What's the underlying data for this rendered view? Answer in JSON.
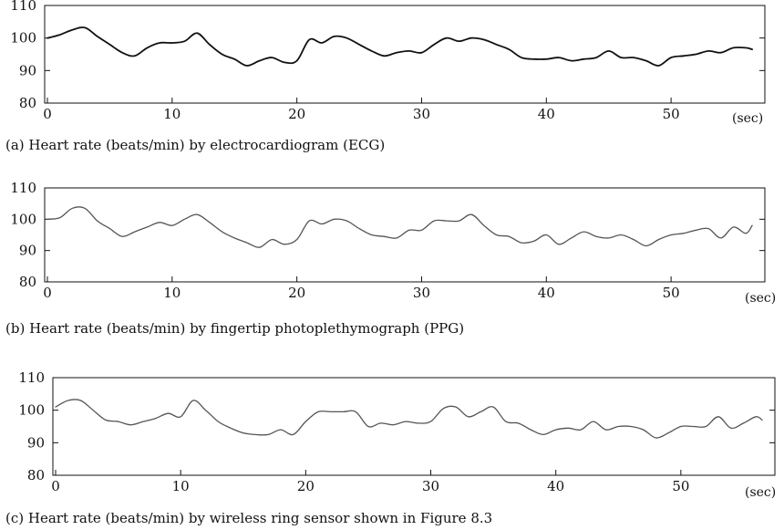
{
  "chart_data": [
    {
      "type": "line",
      "caption": "(a) Heart rate (beats/min) by electrocardiogram (ECG)",
      "x_unit_label": "(sec)",
      "xlim": [
        0,
        56.5
      ],
      "ylim": [
        80,
        110
      ],
      "xticks": [
        0,
        10,
        20,
        30,
        40,
        50
      ],
      "yticks": [
        80,
        90,
        100,
        110
      ],
      "grid": false,
      "line_color": "#111111",
      "series": [
        {
          "x": [
            0,
            1,
            2,
            3,
            4,
            5,
            6,
            7,
            8,
            9,
            10,
            11,
            12,
            13,
            14,
            15,
            16,
            17,
            18,
            19,
            20,
            21,
            22,
            23,
            24,
            25,
            26,
            27,
            28,
            29,
            30,
            31,
            32,
            33,
            34,
            35,
            36,
            37,
            38,
            39,
            40,
            41,
            42,
            43,
            44,
            45,
            46,
            47,
            48,
            49,
            50,
            51,
            52,
            53,
            54,
            55,
            56,
            56.5
          ],
          "values": [
            100,
            101,
            102.5,
            103.2,
            100.5,
            98,
            95.5,
            94.5,
            97,
            98.5,
            98.5,
            99,
            101.5,
            98,
            95,
            93.5,
            91.5,
            93,
            94,
            92.5,
            93,
            99.5,
            98.5,
            100.5,
            100,
            98,
            96,
            94.5,
            95.5,
            96,
            95.5,
            98,
            100,
            99,
            100,
            99.5,
            98,
            96.5,
            94,
            93.5,
            93.5,
            94,
            93,
            93.5,
            94,
            96,
            94,
            94,
            93,
            91.5,
            94,
            94.5,
            95,
            96,
            95.5,
            97,
            97,
            96.5
          ]
        }
      ]
    },
    {
      "type": "line",
      "caption": "(b) Heart rate (beats/min) by fingertip photoplethymograph (PPG)",
      "x_unit_label": "(sec)",
      "xlim": [
        0,
        56.5
      ],
      "ylim": [
        80,
        110
      ],
      "xticks": [
        0,
        10,
        20,
        30,
        40,
        50
      ],
      "yticks": [
        80,
        90,
        100,
        110
      ],
      "grid": false,
      "line_color": "#555555",
      "series": [
        {
          "x": [
            0,
            1,
            2,
            3,
            4,
            5,
            6,
            7,
            8,
            9,
            10,
            11,
            12,
            13,
            14,
            15,
            16,
            17,
            18,
            19,
            20,
            21,
            22,
            23,
            24,
            25,
            26,
            27,
            28,
            29,
            30,
            31,
            32,
            33,
            34,
            35,
            36,
            37,
            38,
            39,
            40,
            41,
            42,
            43,
            44,
            45,
            46,
            47,
            48,
            49,
            50,
            51,
            52,
            53,
            54,
            55,
            56,
            56.5
          ],
          "values": [
            100,
            100.5,
            103.5,
            103.5,
            99.5,
            97,
            94.5,
            96,
            97.5,
            99,
            98,
            100,
            101.5,
            99,
            96,
            94,
            92.5,
            91,
            93.5,
            92,
            93.5,
            99.5,
            98.5,
            100,
            99.5,
            97,
            95,
            94.5,
            94,
            96.5,
            96.5,
            99.5,
            99.5,
            99.5,
            101.5,
            98,
            95,
            94.5,
            92.5,
            93,
            95,
            92,
            94,
            96,
            94.5,
            94,
            95,
            93.5,
            91.5,
            93.5,
            95,
            95.5,
            96.5,
            97,
            94,
            97.5,
            95.5,
            98
          ]
        }
      ]
    },
    {
      "type": "line",
      "caption": "(c) Heart rate (beats/min) by wireless ring sensor shown in Figure 8.3",
      "x_unit_label": "(sec)",
      "xlim": [
        0,
        56.5
      ],
      "ylim": [
        80,
        110
      ],
      "xticks": [
        0,
        10,
        20,
        30,
        40,
        50
      ],
      "yticks": [
        80,
        90,
        100,
        110
      ],
      "grid": false,
      "line_color": "#555555",
      "series": [
        {
          "x": [
            0,
            1,
            2,
            3,
            4,
            5,
            6,
            7,
            8,
            9,
            10,
            11,
            12,
            13,
            14,
            15,
            16,
            17,
            18,
            19,
            20,
            21,
            22,
            23,
            24,
            25,
            26,
            27,
            28,
            29,
            30,
            31,
            32,
            33,
            34,
            35,
            36,
            37,
            38,
            39,
            40,
            41,
            42,
            43,
            44,
            45,
            46,
            47,
            48,
            49,
            50,
            51,
            52,
            53,
            54,
            55,
            56,
            56.5
          ],
          "values": [
            101,
            103,
            103,
            100,
            97,
            96.5,
            95.5,
            96.5,
            97.5,
            99,
            98,
            103,
            100,
            96.5,
            94.5,
            93,
            92.5,
            92.5,
            94,
            92.5,
            96.5,
            99.5,
            99.5,
            99.5,
            99.5,
            95,
            96,
            95.5,
            96.5,
            96,
            96.5,
            100.5,
            101,
            98,
            99.5,
            101,
            96.5,
            96,
            94,
            92.5,
            94,
            94.5,
            94,
            96.5,
            94,
            95,
            95,
            94,
            91.5,
            93,
            95,
            95,
            95,
            98,
            94.5,
            96,
            98,
            97
          ]
        }
      ]
    }
  ]
}
